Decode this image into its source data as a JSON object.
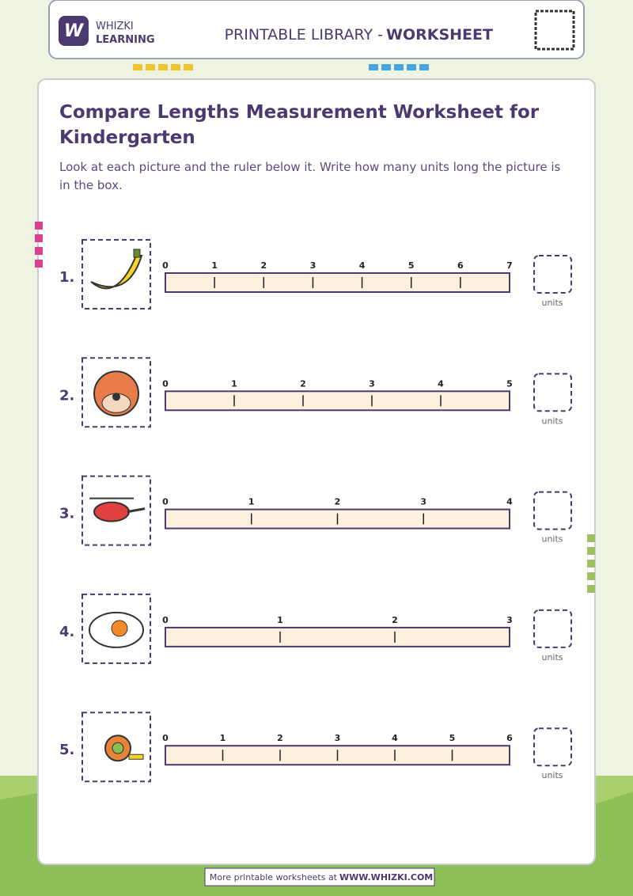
{
  "header": {
    "brand_top": "WHIZKI",
    "brand_bottom": "LEARNING",
    "library": "PRINTABLE LIBRARY -",
    "library_bold": "WORKSHEET"
  },
  "title": "Compare Lengths Measurement Worksheet for Kindergarten",
  "instructions": "Look at each picture and the ruler below it. Write how many units long the picture is in the box.",
  "items": [
    {
      "number": "1.",
      "ruler": [
        0,
        1,
        2,
        3,
        4,
        5,
        6,
        7
      ],
      "answer_label": "units"
    },
    {
      "number": "2.",
      "ruler": [
        0,
        1,
        2,
        3,
        4,
        5
      ],
      "answer_label": "units"
    },
    {
      "number": "3.",
      "ruler": [
        0,
        1,
        2,
        3,
        4
      ],
      "answer_label": "units"
    },
    {
      "number": "4.",
      "ruler": [
        0,
        1,
        2,
        3
      ],
      "answer_label": "units"
    },
    {
      "number": "5.",
      "ruler": [
        0,
        1,
        2,
        3,
        4,
        5,
        6
      ],
      "answer_label": "units"
    }
  ],
  "footer": {
    "text": "More printable worksheets at",
    "link": "WWW.WHIZKI.COM"
  }
}
